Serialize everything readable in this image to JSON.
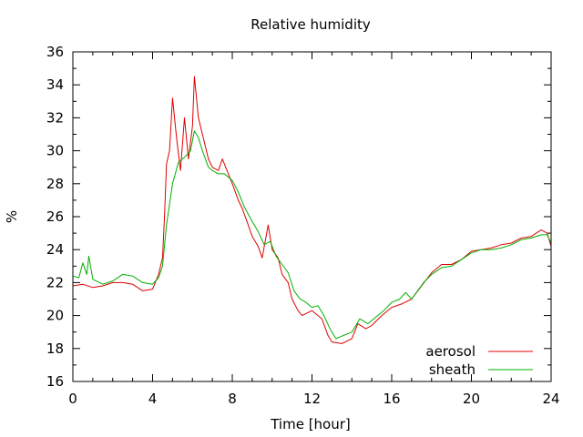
{
  "chart_data": {
    "type": "line",
    "title": "Relative humidity",
    "xlabel": "Time [hour]",
    "ylabel": "%",
    "xlim": [
      0,
      24
    ],
    "ylim": [
      16,
      36
    ],
    "xticks": [
      0,
      4,
      8,
      12,
      16,
      20,
      24
    ],
    "yticks": [
      16,
      18,
      20,
      22,
      24,
      26,
      28,
      30,
      32,
      34,
      36
    ],
    "x_minor_step": 1,
    "y_minor_step": 1,
    "grid": false,
    "legend_position": "bottom-right",
    "series": [
      {
        "name": "aerosol",
        "color": "#e00000",
        "points": [
          [
            0.0,
            21.8
          ],
          [
            0.5,
            21.9
          ],
          [
            1.0,
            21.7
          ],
          [
            1.5,
            21.8
          ],
          [
            2.0,
            22.0
          ],
          [
            2.5,
            22.0
          ],
          [
            3.0,
            21.9
          ],
          [
            3.5,
            21.5
          ],
          [
            4.0,
            21.6
          ],
          [
            4.3,
            22.5
          ],
          [
            4.5,
            23.5
          ],
          [
            4.6,
            26.0
          ],
          [
            4.7,
            29.2
          ],
          [
            4.85,
            30.0
          ],
          [
            5.0,
            33.2
          ],
          [
            5.2,
            30.8
          ],
          [
            5.4,
            28.8
          ],
          [
            5.6,
            32.0
          ],
          [
            5.8,
            29.5
          ],
          [
            6.0,
            31.5
          ],
          [
            6.1,
            34.5
          ],
          [
            6.3,
            32.0
          ],
          [
            6.5,
            31.0
          ],
          [
            6.8,
            29.5
          ],
          [
            7.0,
            29.0
          ],
          [
            7.3,
            28.8
          ],
          [
            7.5,
            29.5
          ],
          [
            8.0,
            28.0
          ],
          [
            8.3,
            27.0
          ],
          [
            8.5,
            26.5
          ],
          [
            8.8,
            25.5
          ],
          [
            9.0,
            24.8
          ],
          [
            9.3,
            24.2
          ],
          [
            9.5,
            23.5
          ],
          [
            9.8,
            25.5
          ],
          [
            10.0,
            24.0
          ],
          [
            10.3,
            23.5
          ],
          [
            10.5,
            22.5
          ],
          [
            10.8,
            22.0
          ],
          [
            11.0,
            21.0
          ],
          [
            11.3,
            20.3
          ],
          [
            11.5,
            20.0
          ],
          [
            12.0,
            20.3
          ],
          [
            12.3,
            20.0
          ],
          [
            12.5,
            19.8
          ],
          [
            12.8,
            18.8
          ],
          [
            13.0,
            18.4
          ],
          [
            13.5,
            18.3
          ],
          [
            14.0,
            18.6
          ],
          [
            14.3,
            19.5
          ],
          [
            14.7,
            19.2
          ],
          [
            15.0,
            19.4
          ],
          [
            15.5,
            20.0
          ],
          [
            16.0,
            20.5
          ],
          [
            16.5,
            20.7
          ],
          [
            17.0,
            21.0
          ],
          [
            17.5,
            21.8
          ],
          [
            18.0,
            22.6
          ],
          [
            18.5,
            23.1
          ],
          [
            19.0,
            23.1
          ],
          [
            19.5,
            23.4
          ],
          [
            20.0,
            23.9
          ],
          [
            20.5,
            24.0
          ],
          [
            21.0,
            24.1
          ],
          [
            21.5,
            24.3
          ],
          [
            22.0,
            24.4
          ],
          [
            22.5,
            24.7
          ],
          [
            23.0,
            24.8
          ],
          [
            23.5,
            25.2
          ],
          [
            23.8,
            25.0
          ],
          [
            24.0,
            24.2
          ]
        ]
      },
      {
        "name": "sheath",
        "color": "#00b000",
        "points": [
          [
            0.0,
            22.4
          ],
          [
            0.3,
            22.3
          ],
          [
            0.5,
            23.2
          ],
          [
            0.7,
            22.5
          ],
          [
            0.8,
            23.6
          ],
          [
            1.0,
            22.2
          ],
          [
            1.5,
            21.9
          ],
          [
            2.0,
            22.1
          ],
          [
            2.5,
            22.5
          ],
          [
            3.0,
            22.4
          ],
          [
            3.5,
            22.0
          ],
          [
            4.0,
            21.9
          ],
          [
            4.3,
            22.3
          ],
          [
            4.5,
            23.0
          ],
          [
            4.7,
            25.5
          ],
          [
            5.0,
            28.0
          ],
          [
            5.3,
            29.3
          ],
          [
            5.6,
            29.6
          ],
          [
            5.9,
            30.0
          ],
          [
            6.1,
            31.2
          ],
          [
            6.3,
            30.8
          ],
          [
            6.5,
            30.0
          ],
          [
            6.8,
            29.0
          ],
          [
            7.0,
            28.8
          ],
          [
            7.3,
            28.6
          ],
          [
            7.6,
            28.6
          ],
          [
            8.0,
            28.2
          ],
          [
            8.3,
            27.5
          ],
          [
            8.6,
            26.6
          ],
          [
            9.0,
            25.7
          ],
          [
            9.3,
            25.1
          ],
          [
            9.6,
            24.3
          ],
          [
            9.9,
            24.5
          ],
          [
            10.2,
            23.6
          ],
          [
            10.5,
            23.1
          ],
          [
            10.8,
            22.6
          ],
          [
            11.1,
            21.5
          ],
          [
            11.4,
            21.0
          ],
          [
            11.7,
            20.8
          ],
          [
            12.0,
            20.5
          ],
          [
            12.3,
            20.6
          ],
          [
            12.6,
            20.0
          ],
          [
            12.9,
            19.2
          ],
          [
            13.2,
            18.6
          ],
          [
            13.6,
            18.8
          ],
          [
            14.0,
            19.0
          ],
          [
            14.4,
            19.8
          ],
          [
            14.8,
            19.5
          ],
          [
            15.2,
            19.9
          ],
          [
            15.6,
            20.3
          ],
          [
            16.0,
            20.8
          ],
          [
            16.4,
            21.0
          ],
          [
            16.7,
            21.4
          ],
          [
            17.0,
            21.0
          ],
          [
            17.3,
            21.5
          ],
          [
            17.6,
            22.0
          ],
          [
            18.0,
            22.5
          ],
          [
            18.5,
            22.9
          ],
          [
            19.0,
            23.0
          ],
          [
            19.5,
            23.4
          ],
          [
            20.0,
            23.8
          ],
          [
            20.5,
            24.0
          ],
          [
            21.0,
            24.0
          ],
          [
            21.5,
            24.1
          ],
          [
            22.0,
            24.3
          ],
          [
            22.5,
            24.6
          ],
          [
            23.0,
            24.7
          ],
          [
            23.5,
            24.9
          ],
          [
            23.8,
            24.9
          ],
          [
            24.0,
            24.4
          ]
        ]
      }
    ]
  }
}
